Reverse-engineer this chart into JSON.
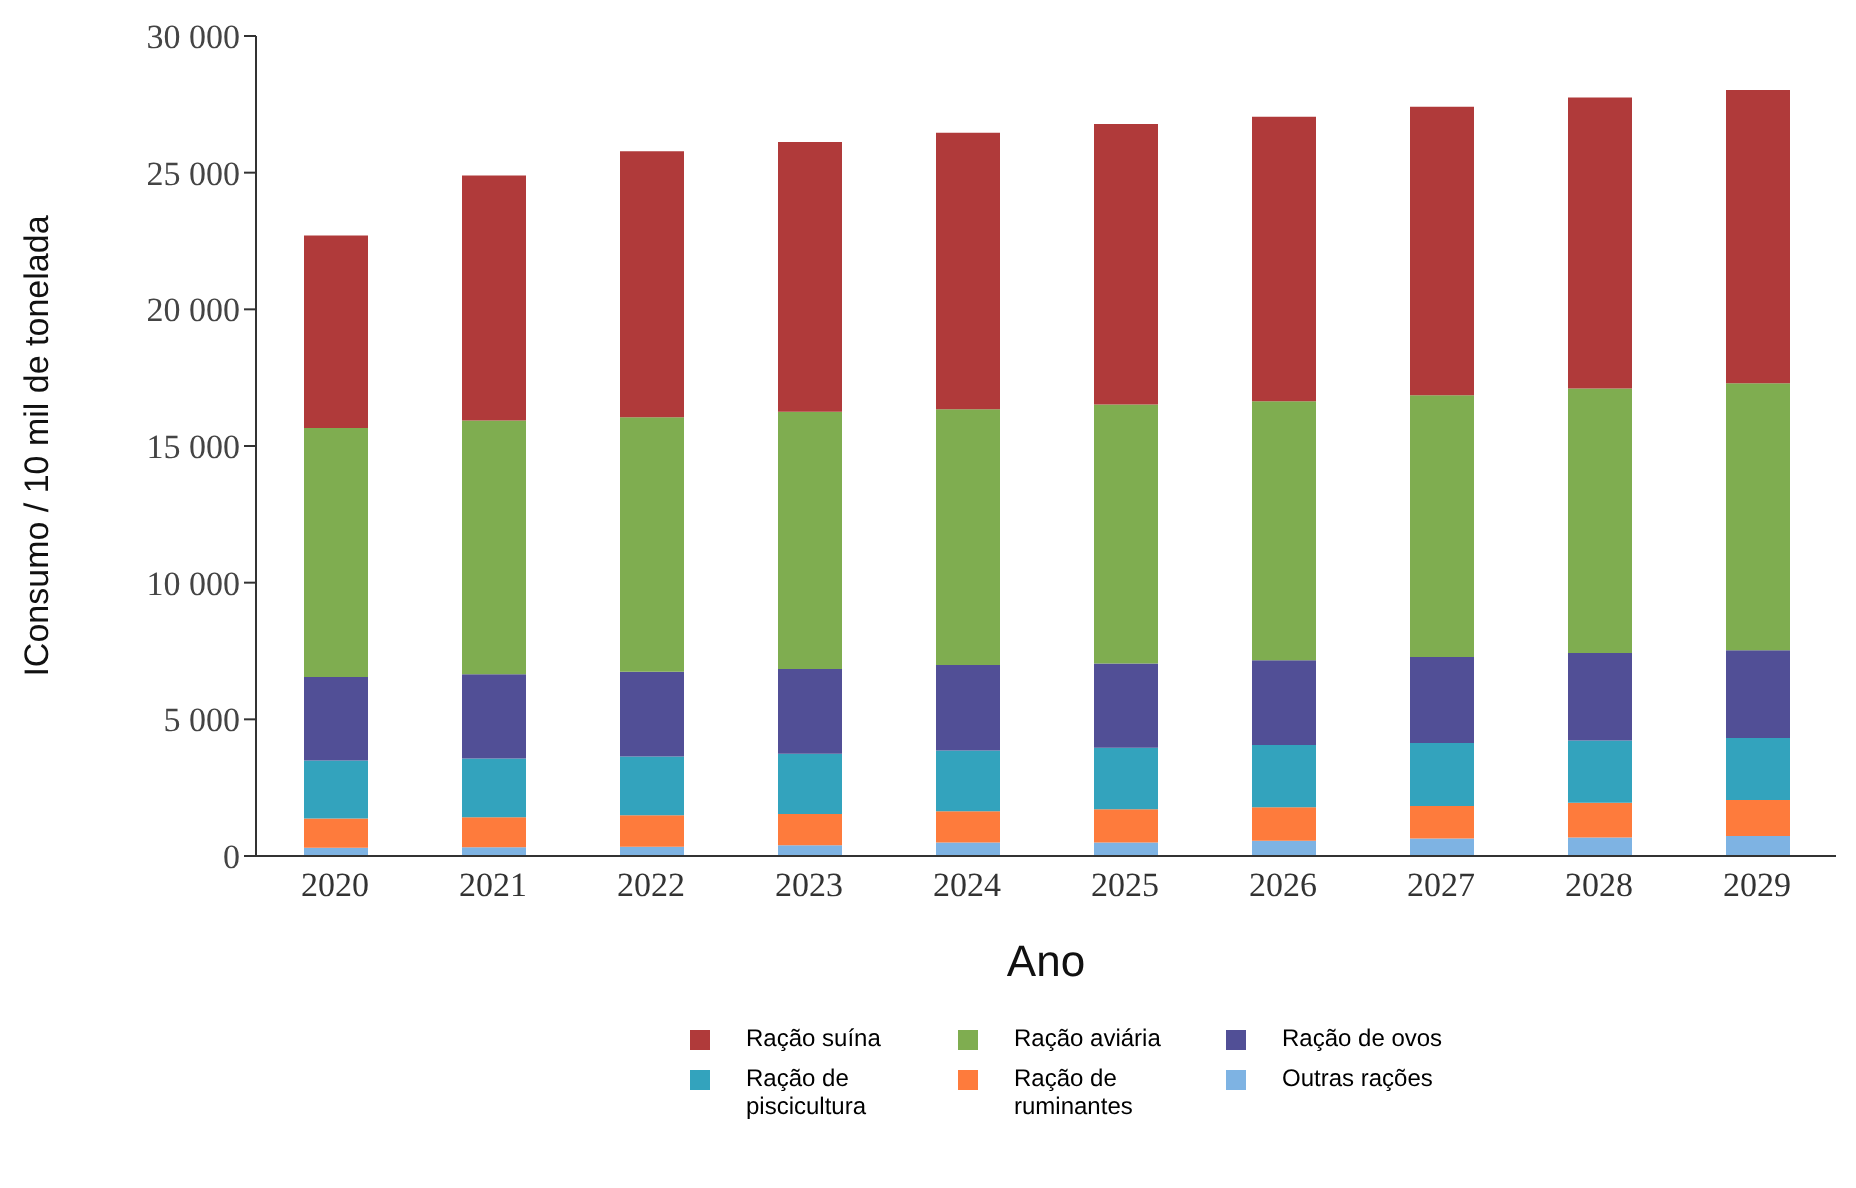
{
  "chart_data": {
    "type": "bar",
    "stacked": true,
    "xlabel": "Ano",
    "ylabel": "IConsumo / 10 mil de tonelada",
    "categories": [
      "2020",
      "2021",
      "2022",
      "2023",
      "2024",
      "2025",
      "2026",
      "2027",
      "2028",
      "2029"
    ],
    "series": [
      {
        "name": "Outras rações",
        "color": "#7eb3e3",
        "values": [
          300,
          320,
          340,
          390,
          490,
          490,
          560,
          640,
          680,
          730
        ]
      },
      {
        "name": "Ração de ruminantes",
        "color": "#fe7b3c",
        "values": [
          1070,
          1100,
          1150,
          1150,
          1150,
          1220,
          1220,
          1190,
          1270,
          1320
        ]
      },
      {
        "name": "Ração de piscicultura",
        "color": "#33a3bd",
        "values": [
          2120,
          2150,
          2150,
          2200,
          2220,
          2250,
          2280,
          2300,
          2280,
          2270
        ]
      },
      {
        "name": "Ração de ovos",
        "color": "#514f96",
        "values": [
          3060,
          3080,
          3100,
          3100,
          3130,
          3080,
          3100,
          3150,
          3200,
          3210
        ]
      },
      {
        "name": "Ração aviária",
        "color": "#7fad50",
        "values": [
          9110,
          9280,
          9310,
          9410,
          9350,
          9480,
          9480,
          9580,
          9670,
          9770
        ]
      },
      {
        "name": "Ração suína",
        "color": "#b03a3a",
        "values": [
          7040,
          8970,
          9730,
          9870,
          10120,
          10260,
          10410,
          10550,
          10650,
          10720
        ]
      }
    ],
    "ylim": [
      0,
      30000
    ],
    "yticks": [
      0,
      {
        "value": 5000,
        "label": "5 000"
      },
      {
        "value": 10000,
        "label": "10 000"
      },
      {
        "value": 15000,
        "label": "15 000"
      },
      {
        "value": 20000,
        "label": "20 000"
      },
      {
        "value": 25000,
        "label": "25 000"
      },
      {
        "value": 30000,
        "label": "30 000"
      }
    ],
    "grid": false,
    "legend": "bottom"
  }
}
